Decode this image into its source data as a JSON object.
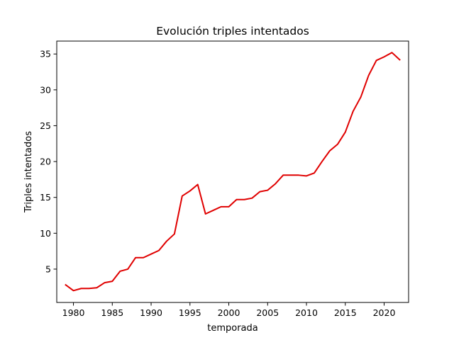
{
  "chart_data": {
    "type": "line",
    "title": "Evolución triples intentados",
    "xlabel": "temporada",
    "ylabel": "Triples intentados",
    "xlim": [
      1977.85,
      2023.15
    ],
    "ylim": [
      0.35,
      36.8
    ],
    "xticks": [
      1980,
      1985,
      1990,
      1995,
      2000,
      2005,
      2010,
      2015,
      2020
    ],
    "yticks": [
      5,
      10,
      15,
      20,
      25,
      30,
      35
    ],
    "grid": false,
    "legend": "none",
    "line_color": "#e00000",
    "series": [
      {
        "x": [
          1979,
          1980,
          1981,
          1982,
          1983,
          1984,
          1985,
          1986,
          1987,
          1988,
          1989,
          1990,
          1991,
          1992,
          1993,
          1994,
          1995,
          1996,
          1997,
          1998,
          1999,
          2000,
          2001,
          2002,
          2003,
          2004,
          2005,
          2006,
          2007,
          2008,
          2009,
          2010,
          2011,
          2012,
          2013,
          2014,
          2015,
          2016,
          2017,
          2018,
          2019,
          2020,
          2021,
          2022
        ],
        "values": [
          2.8,
          2.0,
          2.3,
          2.3,
          2.4,
          3.1,
          3.3,
          4.7,
          5.0,
          6.6,
          6.6,
          7.1,
          7.6,
          8.9,
          9.9,
          15.2,
          15.9,
          16.8,
          12.7,
          13.2,
          13.7,
          13.7,
          14.7,
          14.7,
          14.9,
          15.8,
          16.0,
          16.9,
          18.1,
          18.1,
          18.1,
          18.0,
          18.4,
          20.0,
          21.5,
          22.4,
          24.1,
          27.0,
          29.0,
          32.0,
          34.1,
          34.6,
          35.2,
          34.2
        ]
      }
    ]
  }
}
